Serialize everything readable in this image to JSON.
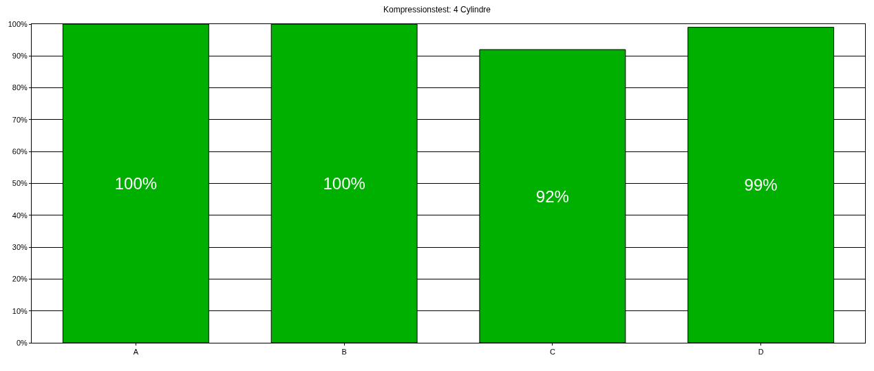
{
  "chart_data": {
    "type": "bar",
    "title": "Kompressionstest: 4 Cylindre",
    "categories": [
      "A",
      "B",
      "C",
      "D"
    ],
    "values": [
      100,
      100,
      92,
      99
    ],
    "value_labels": [
      "100%",
      "100%",
      "92%",
      "99%"
    ],
    "color": "#00b000",
    "ylim": [
      0,
      100
    ],
    "yticks": [
      {
        "value": 0,
        "label": "0%"
      },
      {
        "value": 10,
        "label": "10%"
      },
      {
        "value": 20,
        "label": "20%"
      },
      {
        "value": 30,
        "label": "30%"
      },
      {
        "value": 40,
        "label": "40%"
      },
      {
        "value": 50,
        "label": "50%"
      },
      {
        "value": 60,
        "label": "60%"
      },
      {
        "value": 70,
        "label": "70%"
      },
      {
        "value": 80,
        "label": "80%"
      },
      {
        "value": 90,
        "label": "90%"
      },
      {
        "value": 100,
        "label": "100%"
      }
    ],
    "grid": "y"
  }
}
